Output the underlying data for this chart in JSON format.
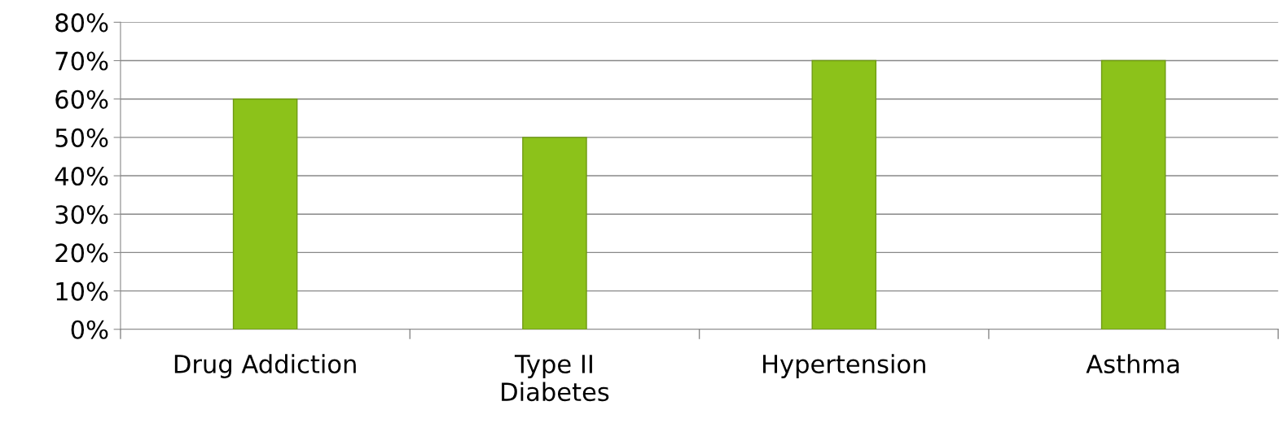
{
  "chart_data": {
    "type": "bar",
    "categories": [
      "Drug Addiction",
      "Type II\nDiabetes",
      "Hypertension",
      "Asthma"
    ],
    "values": [
      60,
      50,
      70,
      70
    ],
    "color": "#8cc21a",
    "ylim": [
      0,
      80
    ],
    "yticks": [
      {
        "value": 0,
        "label": "0%"
      },
      {
        "value": 10,
        "label": "10%"
      },
      {
        "value": 20,
        "label": "20%"
      },
      {
        "value": 30,
        "label": "30%"
      },
      {
        "value": 40,
        "label": "40%"
      },
      {
        "value": 50,
        "label": "50%"
      },
      {
        "value": 60,
        "label": "60%"
      },
      {
        "value": 70,
        "label": "70%"
      },
      {
        "value": 80,
        "label": "80%"
      }
    ],
    "grid": "y"
  }
}
